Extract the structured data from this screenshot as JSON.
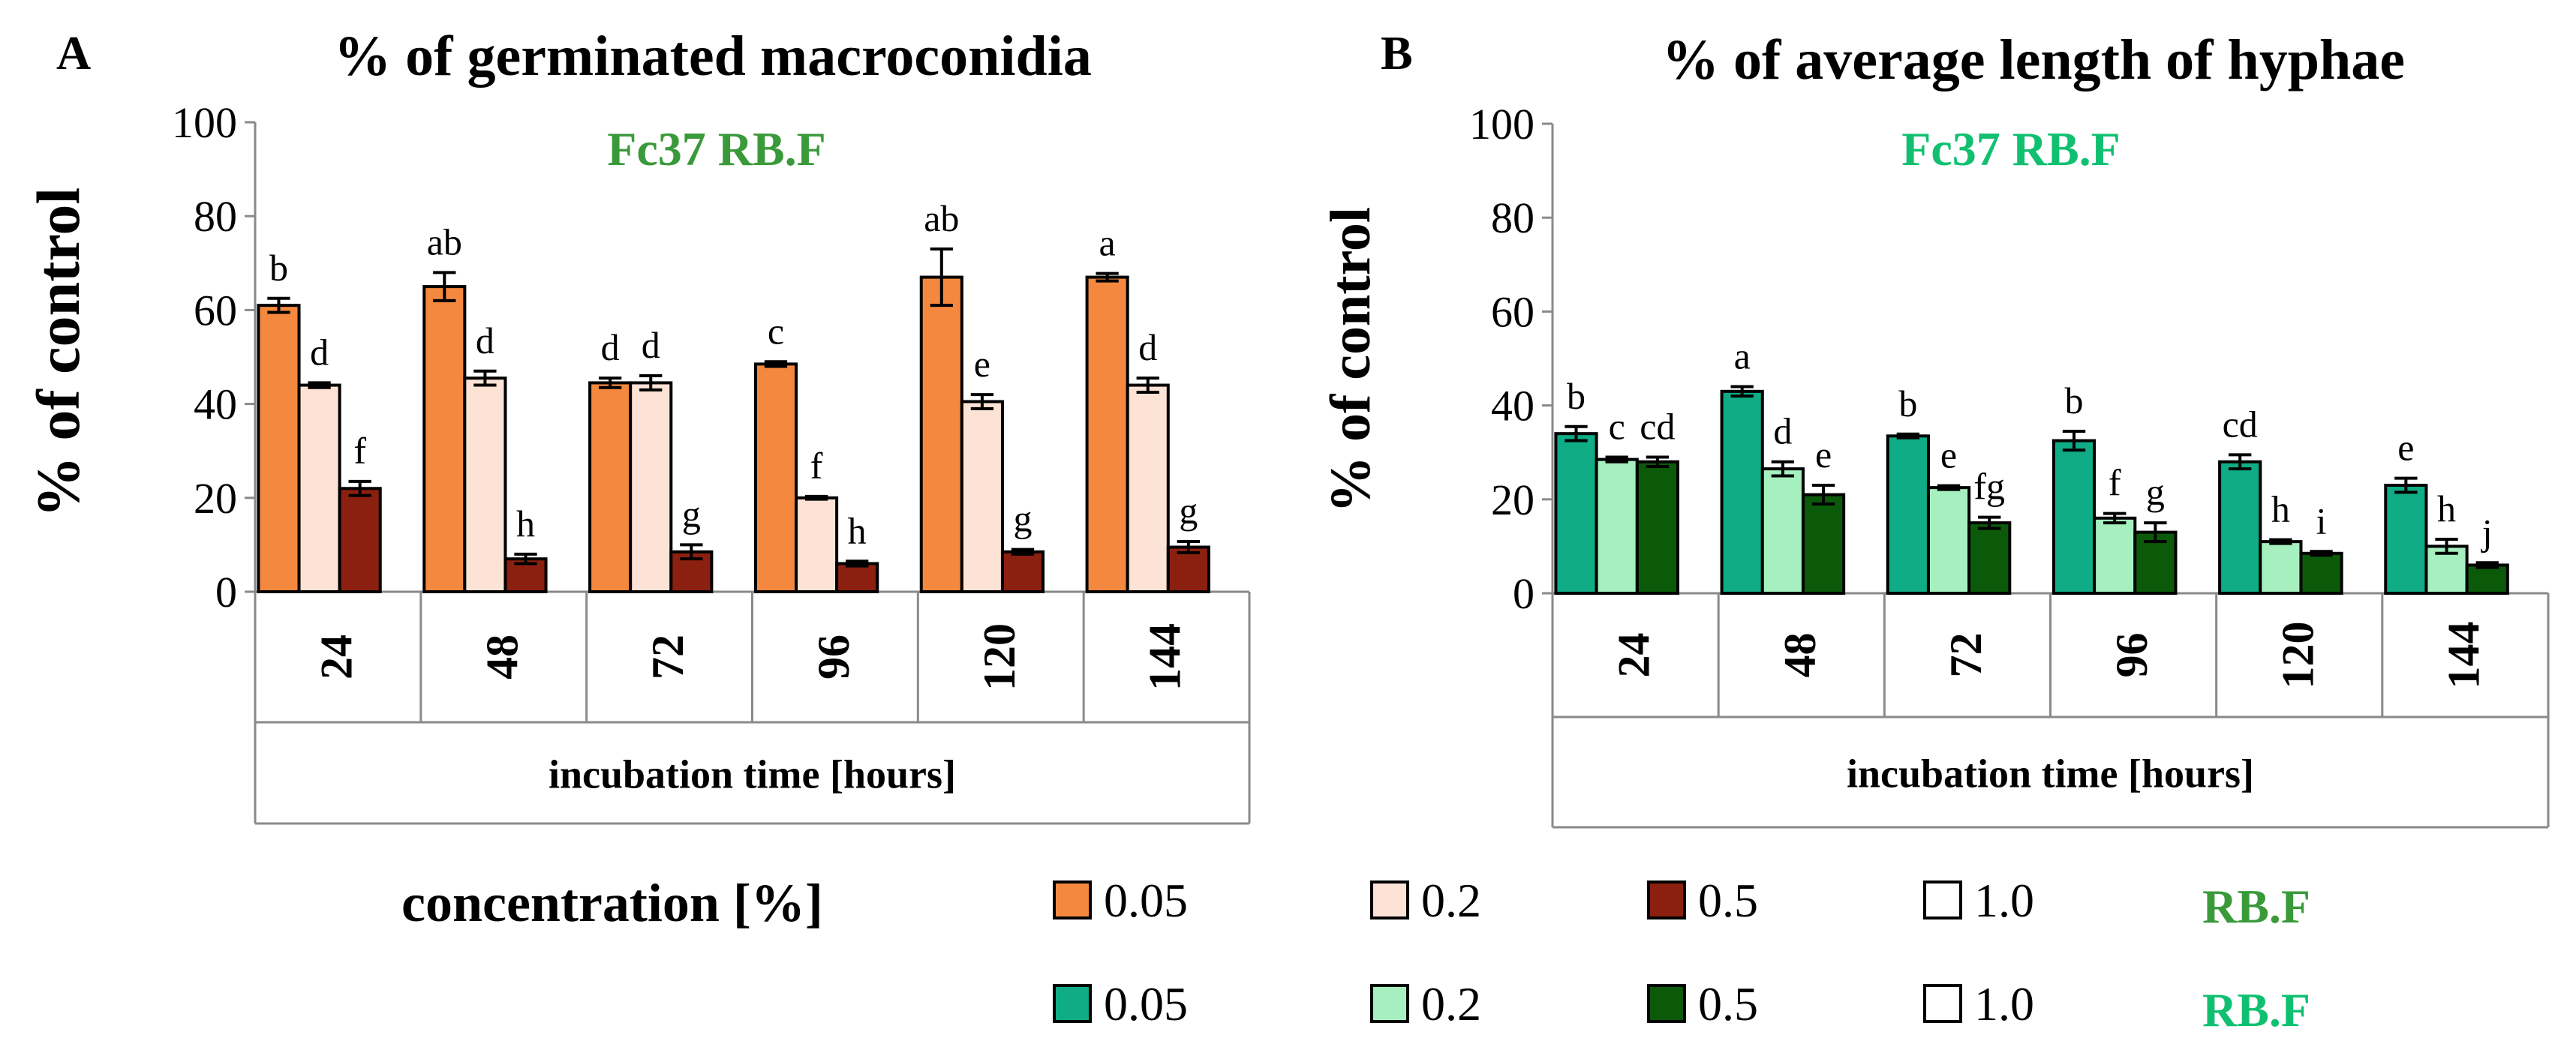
{
  "chart_data": [
    {
      "type": "bar",
      "panel_label": "A",
      "title": "% of germinated macroconidia",
      "subtitle": "Fc37 RB.F",
      "subtitle_color": "#3a9a3a",
      "ylabel": "% of control",
      "xlabel": "incubation time [hours]",
      "ylim": [
        0,
        100
      ],
      "yticks": [
        "0",
        "20",
        "40",
        "60",
        "80",
        "100"
      ],
      "categories": [
        "24",
        "48",
        "72",
        "96",
        "120",
        "144"
      ],
      "series": [
        {
          "name": "0.05",
          "color": "#f4883f",
          "values": [
            61,
            65,
            44.5,
            48.5,
            67,
            67
          ],
          "errors": [
            1.5,
            3,
            1,
            0.5,
            6,
            0.8
          ],
          "letters": [
            "b",
            "ab",
            "d",
            "c",
            "ab",
            "a"
          ]
        },
        {
          "name": "0.2",
          "color": "#fde3d6",
          "values": [
            44,
            45.5,
            44.5,
            20,
            40.5,
            44
          ],
          "errors": [
            0.5,
            1.5,
            1.5,
            0.3,
            1.5,
            1.5
          ],
          "letters": [
            "d",
            "d",
            "d",
            "f",
            "e",
            "d"
          ]
        },
        {
          "name": "0.5",
          "color": "#8c2010",
          "values": [
            22,
            7,
            8.5,
            6,
            8.5,
            9.5
          ],
          "errors": [
            1.5,
            1,
            1.5,
            0.5,
            0.5,
            1.2
          ],
          "letters": [
            "f",
            "h",
            "g",
            "h",
            "g",
            "g"
          ]
        }
      ]
    },
    {
      "type": "bar",
      "panel_label": "B",
      "title": "% of average length of hyphae",
      "subtitle": "Fc37 RB.F",
      "subtitle_color": "#10c070",
      "ylabel": "% of control",
      "xlabel": "incubation time [hours]",
      "ylim": [
        0,
        100
      ],
      "yticks": [
        "0",
        "20",
        "40",
        "60",
        "80",
        "100"
      ],
      "categories": [
        "24",
        "48",
        "72",
        "96",
        "120",
        "144"
      ],
      "series": [
        {
          "name": "0.05",
          "color": "#0fac86",
          "values": [
            34,
            43,
            33.5,
            32.5,
            28,
            23
          ],
          "errors": [
            1.5,
            1,
            0.4,
            2,
            1.5,
            1.5
          ],
          "letters": [
            "b",
            "a",
            "b",
            "b",
            "cd",
            "e"
          ]
        },
        {
          "name": "0.2",
          "color": "#a6f0c0",
          "values": [
            28.5,
            26.5,
            22.5,
            16,
            11,
            10
          ],
          "errors": [
            0.5,
            1.5,
            0.4,
            1,
            0.4,
            1.5
          ],
          "letters": [
            "c",
            "d",
            "e",
            "f",
            "h",
            "h"
          ]
        },
        {
          "name": "0.5",
          "color": "#0a5a0a",
          "values": [
            28,
            21,
            15,
            13,
            8.5,
            6
          ],
          "errors": [
            1,
            2,
            1.2,
            2,
            0.4,
            0.5
          ],
          "letters": [
            "cd",
            "e",
            "fg",
            "g",
            "i",
            "j"
          ]
        }
      ]
    }
  ],
  "legend": {
    "title": "concentration [%]",
    "rows": [
      {
        "items": [
          {
            "label": "0.05",
            "color": "#f4883f"
          },
          {
            "label": "0.2",
            "color": "#fde3d6"
          },
          {
            "label": "0.5",
            "color": "#8c2010"
          },
          {
            "label": "1.0",
            "color": "#ffffff"
          }
        ],
        "tag": "RB.F",
        "tag_color": "#3a9a3a"
      },
      {
        "items": [
          {
            "label": "0.05",
            "color": "#0fac86"
          },
          {
            "label": "0.2",
            "color": "#a6f0c0"
          },
          {
            "label": "0.5",
            "color": "#0a5a0a"
          },
          {
            "label": "1.0",
            "color": "#ffffff"
          }
        ],
        "tag": "RB.F",
        "tag_color": "#10c070"
      }
    ]
  }
}
